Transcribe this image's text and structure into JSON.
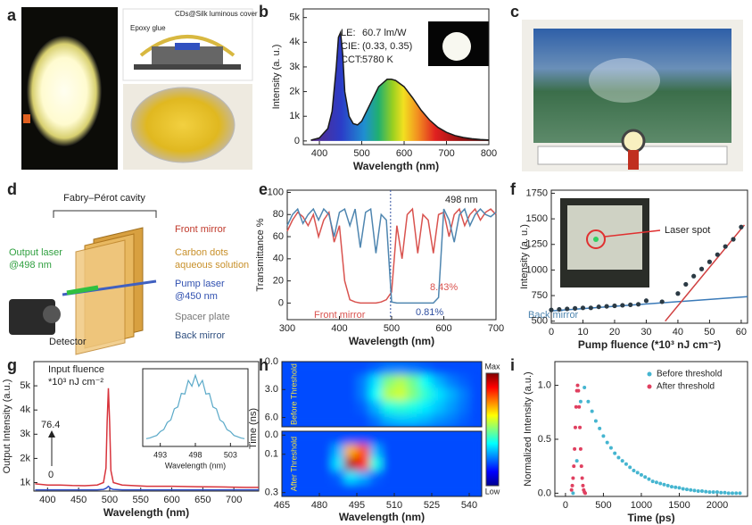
{
  "panel_labels": [
    "a",
    "b",
    "c",
    "d",
    "e",
    "f",
    "g",
    "h",
    "i"
  ],
  "panel_a": {
    "labels": [
      "Epoxy glue",
      "CDs@Silk luminous cover"
    ]
  },
  "panel_d": {
    "title": "Fabry–Pérot cavity",
    "labels": [
      "Front mirror",
      "Carbon dots",
      "aqueous solution",
      "Output laser",
      "@498 nm",
      "Pump laser",
      "@450 nm",
      "Spacer plate",
      "Back mirror",
      "Detector"
    ]
  },
  "chart_data": [
    {
      "type": "line",
      "xlabel": "Wavelength (nm)",
      "ylabel": "Intensity (a. u.)",
      "xlim": [
        362,
        800
      ],
      "ylim": [
        -150,
        5350
      ],
      "xticks": [
        400,
        500,
        600,
        700,
        800
      ],
      "yticks": [
        0,
        {
          "value": 1000,
          "label": "1k"
        },
        {
          "value": 2000,
          "label": "2k"
        },
        {
          "value": 3000,
          "label": "3k"
        },
        {
          "value": 4000,
          "label": "4k"
        },
        {
          "value": 5000,
          "label": "5k"
        }
      ],
      "annotations": [
        "LE:",
        "60.7 lm/W",
        "CIE:",
        "(0.33, 0.35)",
        "CCT:",
        "5780 K"
      ],
      "x": [
        380,
        400,
        420,
        430,
        440,
        445,
        450,
        455,
        460,
        470,
        480,
        490,
        500,
        520,
        540,
        560,
        570,
        580,
        600,
        620,
        640,
        660,
        680,
        700,
        720,
        740,
        760,
        780,
        800
      ],
      "series": [
        {
          "color": "#1a1a1a",
          "values": [
            30,
            120,
            500,
            1200,
            3000,
            4200,
            4400,
            3500,
            2000,
            1000,
            700,
            650,
            800,
            1500,
            2200,
            2500,
            2500,
            2450,
            2200,
            1750,
            1250,
            850,
            550,
            350,
            220,
            140,
            90,
            60,
            40
          ]
        }
      ]
    },
    {
      "type": "line",
      "xlabel": "Wavelength (nm)",
      "ylabel": "Transmittance %",
      "xlim": [
        300,
        700
      ],
      "ylim": [
        -15,
        102
      ],
      "xticks": [
        300,
        400,
        500,
        600,
        700
      ],
      "yticks": [
        0,
        20,
        40,
        60,
        80,
        100
      ],
      "vline": 498,
      "annotations": [
        "498 nm",
        "8.43%",
        "0.81%"
      ],
      "x": [
        300,
        310,
        320,
        330,
        340,
        350,
        360,
        370,
        380,
        390,
        400,
        410,
        420,
        430,
        440,
        450,
        460,
        470,
        480,
        490,
        500,
        510,
        520,
        530,
        540,
        550,
        560,
        570,
        580,
        590,
        600,
        610,
        620,
        630,
        640,
        650,
        660,
        670,
        680,
        690,
        700
      ],
      "series": [
        {
          "name": "Front mirror",
          "color": "#d9534f",
          "values": [
            65,
            75,
            82,
            78,
            70,
            80,
            60,
            75,
            82,
            55,
            70,
            20,
            3,
            1,
            0,
            0,
            0,
            0,
            1,
            3,
            10,
            70,
            40,
            80,
            85,
            45,
            80,
            75,
            45,
            80,
            82,
            60,
            80,
            85,
            70,
            80,
            85,
            75,
            82,
            85,
            80
          ]
        },
        {
          "name": "Back mirror",
          "color": "#4f86b0",
          "values": [
            70,
            80,
            85,
            72,
            80,
            85,
            75,
            85,
            80,
            60,
            82,
            85,
            70,
            85,
            50,
            82,
            85,
            45,
            80,
            75,
            1,
            0,
            0,
            0,
            0,
            0,
            0,
            0,
            0,
            5,
            85,
            75,
            55,
            80,
            85,
            70,
            80,
            85,
            80,
            78,
            82
          ]
        }
      ]
    },
    {
      "type": "scatter",
      "xlabel": "Pump fluence (*10³ nJ cm⁻²)",
      "ylabel": "Intensity (a. u.)",
      "xlim": [
        0,
        62
      ],
      "ylim": [
        480,
        1780
      ],
      "xticks": [
        0,
        10,
        20,
        30,
        40,
        50,
        60
      ],
      "yticks": [
        500,
        750,
        1000,
        1250,
        1500,
        1750
      ],
      "annotations": [
        "Laser spot"
      ],
      "x": [
        0,
        2.5,
        5,
        7.5,
        10,
        12.5,
        15,
        17.5,
        20,
        22.5,
        25,
        27.5,
        30,
        35,
        40,
        42.5,
        45,
        47.5,
        50,
        52.5,
        55,
        57.5,
        60
      ],
      "series": [
        {
          "color": "#2b3a44",
          "values": [
            610,
            615,
            620,
            625,
            630,
            630,
            640,
            645,
            650,
            655,
            660,
            665,
            700,
            690,
            770,
            860,
            940,
            1010,
            1080,
            1150,
            1230,
            1300,
            1420
          ]
        }
      ],
      "fits": [
        {
          "color": "#3a7ab8",
          "x": [
            0,
            62
          ],
          "values": [
            600,
            740
          ]
        },
        {
          "color": "#d04040",
          "x": [
            36,
            61
          ],
          "values": [
            500,
            1440
          ]
        }
      ]
    },
    {
      "type": "line",
      "xlabel": "Wavelength (nm)",
      "ylabel": "Output Intensity (a.u.)",
      "xlim": [
        378,
        740
      ],
      "ylim": [
        650,
        6000
      ],
      "xticks": [
        400,
        450,
        500,
        550,
        600,
        650,
        700
      ],
      "yticks": [
        {
          "value": 1000,
          "label": "1k"
        },
        {
          "value": 2000,
          "label": "2k"
        },
        {
          "value": 3000,
          "label": "3k"
        },
        {
          "value": 4000,
          "label": "4k"
        },
        {
          "value": 5000,
          "label": "5k"
        }
      ],
      "annotations": [
        "Input fluence",
        "*10³ nJ cm⁻²",
        "76.4",
        "0"
      ],
      "x": [
        380,
        400,
        420,
        440,
        460,
        480,
        490,
        494,
        496,
        498,
        500,
        502,
        506,
        520,
        560,
        600,
        640,
        680,
        720,
        740
      ],
      "series": [
        {
          "color": "#d8343c",
          "values": [
            950,
            900,
            900,
            880,
            870,
            900,
            1000,
            1600,
            3500,
            4900,
            3500,
            1500,
            1000,
            900,
            850,
            850,
            830,
            820,
            800,
            800
          ]
        },
        {
          "color": "#3050c8",
          "values": [
            700,
            700,
            700,
            700,
            700,
            700,
            720,
            760,
            800,
            850,
            800,
            750,
            720,
            700,
            700,
            700,
            700,
            700,
            700,
            700
          ]
        }
      ]
    },
    {
      "type": "line",
      "xlabel": "Wavelength (nm)",
      "xlim": [
        490.5,
        505.5
      ],
      "ylim": [
        0,
        1.2
      ],
      "xticks": [
        493,
        498,
        503
      ],
      "x": [
        491,
        491.5,
        492,
        492.5,
        493,
        493.5,
        494,
        494.5,
        495,
        495.5,
        496,
        496.5,
        497,
        497.5,
        498,
        498.5,
        499,
        499.5,
        500,
        500.5,
        501,
        501.5,
        502,
        502.5,
        503,
        503.5,
        504,
        504.5,
        505
      ],
      "series": [
        {
          "color": "#5aa9c8",
          "values": [
            0.12,
            0.13,
            0.15,
            0.17,
            0.23,
            0.26,
            0.37,
            0.41,
            0.58,
            0.61,
            0.82,
            0.81,
            1.02,
            0.93,
            1.1,
            0.93,
            1.02,
            0.81,
            0.82,
            0.61,
            0.58,
            0.41,
            0.37,
            0.26,
            0.23,
            0.17,
            0.15,
            0.13,
            0.12
          ]
        }
      ]
    },
    {
      "type": "heatmap",
      "xlabel": "Wavelength (nm)",
      "ylabel": "Time (ns)",
      "xlim": [
        465,
        545
      ],
      "xticks": [
        465,
        480,
        495,
        510,
        525,
        540
      ],
      "colormap": "jet",
      "colorbar_labels": [
        "Max",
        "Low"
      ],
      "panels": [
        {
          "label": "Before Threshold",
          "ylim": [
            0,
            7
          ],
          "yticks": [
            {
              "value": 0,
              "label": "0.0"
            },
            {
              "value": 3,
              "label": "3.0"
            },
            {
              "value": 6,
              "label": "6.0"
            }
          ],
          "x": [
            467.5,
            472.5,
            477.5,
            482.5,
            487.5,
            492.5,
            497.5,
            502.5,
            507.5,
            512.5,
            517.5,
            522.5,
            527.5,
            532.5,
            537.5,
            542.5
          ],
          "y": [
            0.7,
            2.1,
            3.5,
            4.9,
            6.3
          ],
          "z": [
            [
              0.2,
              0.2,
              0.2,
              0.2,
              0.2,
              0.2,
              0.2,
              0.22,
              0.25,
              0.25,
              0.24,
              0.22,
              0.2,
              0.2,
              0.2,
              0.2
            ],
            [
              0.2,
              0.2,
              0.2,
              0.2,
              0.2,
              0.2,
              0.25,
              0.35,
              0.5,
              0.55,
              0.48,
              0.38,
              0.3,
              0.25,
              0.22,
              0.2
            ],
            [
              0.2,
              0.2,
              0.2,
              0.2,
              0.2,
              0.2,
              0.25,
              0.38,
              0.55,
              0.58,
              0.5,
              0.42,
              0.35,
              0.3,
              0.25,
              0.2
            ],
            [
              0.2,
              0.2,
              0.2,
              0.2,
              0.2,
              0.2,
              0.22,
              0.3,
              0.4,
              0.42,
              0.4,
              0.36,
              0.32,
              0.28,
              0.24,
              0.2
            ],
            [
              0.2,
              0.2,
              0.2,
              0.2,
              0.2,
              0.2,
              0.2,
              0.24,
              0.3,
              0.32,
              0.32,
              0.3,
              0.27,
              0.25,
              0.22,
              0.2
            ]
          ]
        },
        {
          "label": "After Threshold",
          "ylim": [
            -0.02,
            0.32
          ],
          "yticks": [
            {
              "value": 0,
              "label": "0.0"
            },
            {
              "value": 0.1,
              "label": "0.1"
            },
            {
              "value": 0.3,
              "label": "0.3"
            }
          ],
          "x": [
            467.5,
            472.5,
            477.5,
            482.5,
            487.5,
            492.5,
            497.5,
            502.5,
            507.5,
            512.5,
            517.5,
            522.5,
            527.5,
            532.5,
            537.5,
            542.5
          ],
          "y": [
            0.014,
            0.082,
            0.15,
            0.218,
            0.286
          ],
          "z": [
            [
              0.2,
              0.2,
              0.2,
              0.2,
              0.2,
              0.2,
              0.2,
              0.2,
              0.2,
              0.2,
              0.2,
              0.2,
              0.2,
              0.2,
              0.2,
              0.2
            ],
            [
              0.2,
              0.2,
              0.2,
              0.2,
              0.3,
              0.7,
              0.8,
              0.3,
              0.2,
              0.2,
              0.2,
              0.2,
              0.2,
              0.2,
              0.2,
              0.2
            ],
            [
              0.2,
              0.2,
              0.2,
              0.2,
              0.35,
              0.95,
              0.85,
              0.4,
              0.2,
              0.2,
              0.2,
              0.2,
              0.2,
              0.2,
              0.2,
              0.2
            ],
            [
              0.2,
              0.2,
              0.2,
              0.2,
              0.22,
              0.35,
              0.3,
              0.22,
              0.2,
              0.2,
              0.2,
              0.2,
              0.2,
              0.2,
              0.2,
              0.2
            ],
            [
              0.2,
              0.2,
              0.2,
              0.2,
              0.2,
              0.2,
              0.2,
              0.2,
              0.2,
              0.2,
              0.2,
              0.2,
              0.2,
              0.2,
              0.2,
              0.2
            ]
          ]
        }
      ]
    },
    {
      "type": "scatter",
      "xlabel": "Time (ps)",
      "ylabel": "Normalized Intensity (a.u.)",
      "xlim": [
        -140,
        2400
      ],
      "ylim": [
        -0.03,
        1.22
      ],
      "xticks": [
        0,
        500,
        1000,
        1500,
        2000
      ],
      "yticks": [
        {
          "value": 0,
          "label": "0.0"
        },
        {
          "value": 0.5,
          "label": "0.5"
        },
        {
          "value": 1,
          "label": "1.0"
        }
      ],
      "legend": "upper right",
      "series": [
        {
          "name": "Before threshold",
          "color": "#45b5d0",
          "x": [
            100,
            150,
            200,
            250,
            300,
            350,
            400,
            450,
            500,
            550,
            600,
            650,
            700,
            750,
            800,
            850,
            900,
            950,
            1000,
            1050,
            1100,
            1150,
            1200,
            1250,
            1300,
            1350,
            1400,
            1450,
            1500,
            1550,
            1600,
            1650,
            1700,
            1750,
            1800,
            1850,
            1900,
            1950,
            2000,
            2050,
            2100,
            2150,
            2200,
            2250,
            2300
          ],
          "values": [
            0,
            0.3,
            0.85,
            0.98,
            0.85,
            0.76,
            0.67,
            0.6,
            0.53,
            0.47,
            0.42,
            0.37,
            0.33,
            0.3,
            0.27,
            0.24,
            0.21,
            0.19,
            0.17,
            0.15,
            0.13,
            0.11,
            0.1,
            0.09,
            0.08,
            0.07,
            0.06,
            0.055,
            0.05,
            0.04,
            0.035,
            0.03,
            0.025,
            0.02,
            0.02,
            0.015,
            0.01,
            0.01,
            0.01,
            0.005,
            0.005,
            0,
            0,
            0,
            0
          ]
        },
        {
          "name": "After threshold",
          "color": "#e04060",
          "x": [
            80,
            90,
            100,
            110,
            120,
            130,
            140,
            150,
            160,
            170,
            180,
            190,
            200,
            210,
            220,
            230,
            240,
            250,
            260
          ],
          "values": [
            0.03,
            0.07,
            0.14,
            0.25,
            0.41,
            0.61,
            0.8,
            0.95,
            1.0,
            0.95,
            0.8,
            0.61,
            0.41,
            0.25,
            0.14,
            0.07,
            0.03,
            0.01,
            0
          ]
        }
      ]
    }
  ]
}
